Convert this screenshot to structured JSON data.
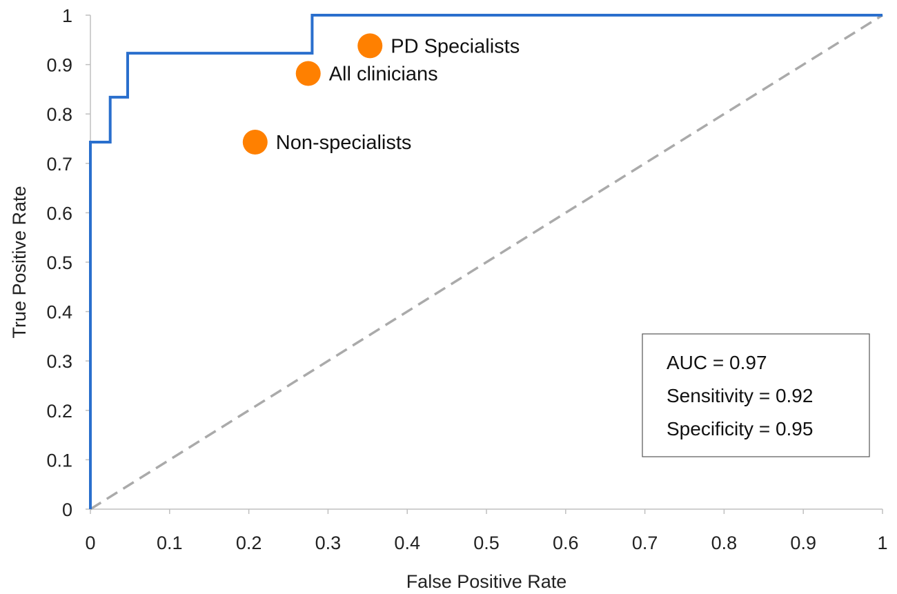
{
  "chart_data": {
    "type": "line",
    "xlabel": "False Positive Rate",
    "ylabel": "True Positive Rate",
    "xlim": [
      0,
      1
    ],
    "ylim": [
      0,
      1
    ],
    "x_ticks": [
      "0",
      "0.1",
      "0.2",
      "0.3",
      "0.4",
      "0.5",
      "0.6",
      "0.7",
      "0.8",
      "0.9",
      "1"
    ],
    "y_ticks": [
      "0",
      "0.1",
      "0.2",
      "0.3",
      "0.4",
      "0.5",
      "0.6",
      "0.7",
      "0.8",
      "0.9",
      "1"
    ],
    "grid": false,
    "roc_curve": {
      "color": "#2a6fcd",
      "points": [
        [
          0,
          0
        ],
        [
          0,
          0.743
        ],
        [
          0.025,
          0.743
        ],
        [
          0.025,
          0.834
        ],
        [
          0.047,
          0.834
        ],
        [
          0.047,
          0.923
        ],
        [
          0.28,
          0.923
        ],
        [
          0.28,
          1
        ],
        [
          1,
          1
        ]
      ]
    },
    "chance_line": {
      "color": "#aaaaaa",
      "points": [
        [
          0,
          0
        ],
        [
          1,
          1
        ]
      ]
    },
    "clinician_points": {
      "color": "#ff8000",
      "points": [
        {
          "label": "PD Specialists",
          "x": 0.353,
          "y": 0.938
        },
        {
          "label": "All clinicians",
          "x": 0.275,
          "y": 0.882
        },
        {
          "label": "Non-specialists",
          "x": 0.208,
          "y": 0.743
        }
      ]
    },
    "metrics_box": {
      "placement": "lower-right",
      "lines": [
        "AUC = 0.97",
        "Sensitivity = 0.92",
        "Specificity = 0.95"
      ]
    }
  }
}
